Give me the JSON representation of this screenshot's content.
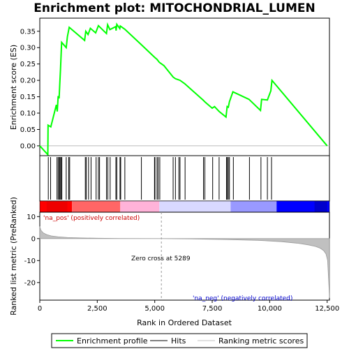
{
  "chart_data": {
    "type": "line",
    "title": "Enrichment plot: MITOCHONDRIAL_LUMEN",
    "xlabel": "Rank in Ordered Dataset",
    "top_panel": {
      "ylabel": "Enrichment score (ES)",
      "ylim": [
        -0.03,
        0.39
      ],
      "yticks": [
        "0.00",
        "0.05",
        "0.10",
        "0.15",
        "0.20",
        "0.25",
        "0.30",
        "0.35"
      ],
      "series": [
        {
          "name": "Enrichment profile",
          "color": "#00ff00",
          "x": [
            0,
            350,
            360,
            480,
            720,
            760,
            800,
            840,
            870,
            900,
            950,
            1150,
            1200,
            1280,
            1950,
            2000,
            2100,
            2200,
            2430,
            2550,
            2900,
            2950,
            3050,
            3300,
            3320,
            3350,
            3480,
            3500,
            3700,
            4400,
            5000,
            5100,
            5200,
            5400,
            5800,
            5900,
            6100,
            6300,
            7100,
            7200,
            7500,
            7600,
            7800,
            8100,
            8150,
            8200,
            8250,
            8400,
            9100,
            9600,
            9650,
            9900,
            10050,
            10100,
            12500
          ],
          "y": [
            0.0,
            -0.027,
            0.063,
            0.058,
            0.125,
            0.105,
            0.152,
            0.145,
            0.19,
            0.232,
            0.316,
            0.3,
            0.333,
            0.362,
            0.322,
            0.35,
            0.34,
            0.359,
            0.345,
            0.367,
            0.343,
            0.37,
            0.355,
            0.364,
            0.352,
            0.371,
            0.358,
            0.366,
            0.356,
            0.31,
            0.27,
            0.264,
            0.255,
            0.245,
            0.21,
            0.205,
            0.2,
            0.19,
            0.14,
            0.133,
            0.115,
            0.12,
            0.105,
            0.088,
            0.12,
            0.118,
            0.135,
            0.165,
            0.142,
            0.108,
            0.142,
            0.14,
            0.168,
            0.2,
            0.0
          ]
        }
      ],
      "hits": [
        370,
        470,
        750,
        800,
        850,
        880,
        920,
        960,
        1150,
        1260,
        1300,
        1980,
        2020,
        2120,
        2230,
        2450,
        2550,
        2600,
        2900,
        2960,
        3060,
        3310,
        3350,
        3490,
        3520,
        3700,
        4420,
        4990,
        5010,
        5100,
        5150,
        5220,
        5800,
        5900,
        6050,
        6100,
        6320,
        7120,
        7180,
        7520,
        7800,
        8120,
        8160,
        8200,
        8250,
        8420,
        9120,
        9620,
        9900,
        10080
      ]
    },
    "heatmap_bar": {
      "colors": [
        "#ff0000",
        "#ff6666",
        "#ffb3d9",
        "#d9d9ff",
        "#9999ff",
        "#0000ff"
      ],
      "labels": [
        "'na_pos' (positively correlated)",
        "'na_neg' (negatively correlated)"
      ]
    },
    "bottom_panel": {
      "ylabel": "Ranked list metric (PreRanked)",
      "ylim": [
        -28,
        12
      ],
      "yticks": [
        "10",
        "0",
        "-10",
        "-20"
      ],
      "xlim": [
        0,
        12600
      ],
      "xticks": [
        "0",
        "2,500",
        "5,000",
        "7,500",
        "10,000",
        "12,500"
      ],
      "series": [
        {
          "name": "Ranking metric scores",
          "color": "#c0c0c0",
          "x": [
            0,
            50,
            150,
            300,
            500,
            800,
            1200,
            1800,
            2500,
            3500,
            5289,
            6500,
            8000,
            9500,
            10500,
            11200,
            11700,
            12000,
            12200,
            12350,
            12450,
            12520,
            12580,
            12600
          ],
          "y": [
            5.5,
            3.8,
            2.6,
            1.8,
            1.2,
            0.8,
            0.5,
            0.3,
            0.15,
            0.05,
            0.0,
            -0.15,
            -0.4,
            -0.8,
            -1.4,
            -2.1,
            -2.9,
            -3.6,
            -4.4,
            -5.5,
            -7.0,
            -10.0,
            -22.0,
            -27.0
          ]
        }
      ],
      "zero_cross_label": "Zero cross at 5289",
      "zero_cross": 5289
    },
    "legend": {
      "entries": [
        "Enrichment profile",
        "Hits",
        "Ranking metric scores"
      ],
      "placement": "bottom"
    }
  }
}
